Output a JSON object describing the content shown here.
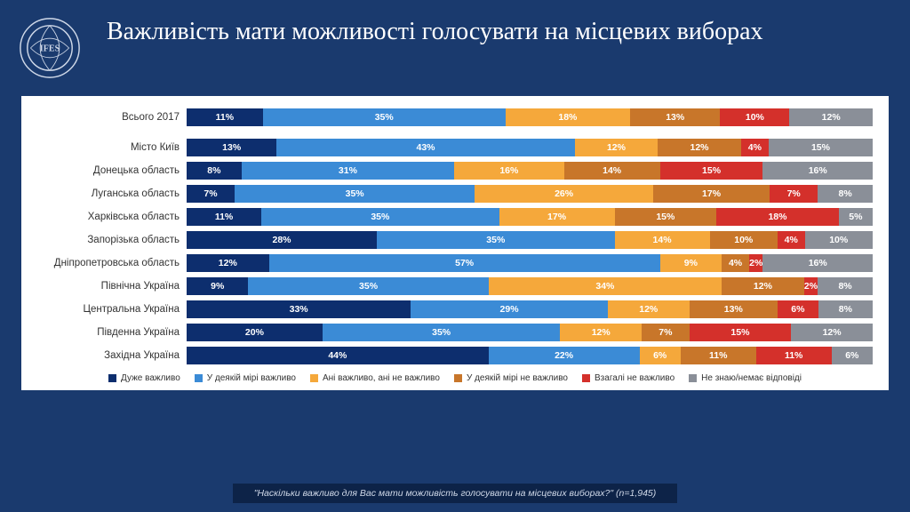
{
  "title": "Важливість мати можливості голосувати на місцевих виборах",
  "footer": "\"Наскільки важливо для Вас мати можливість голосувати на місцевих виборах?\" (n=1,945)",
  "colors": {
    "c1": "#0d2e6e",
    "c2": "#3b8bd6",
    "c3": "#f5a83b",
    "c4": "#c8762a",
    "c5": "#d4302b",
    "c6": "#8a8f98",
    "bg": "#1a3a6e",
    "panel": "#ffffff"
  },
  "legend": [
    {
      "label": "Дуже важливо",
      "color": "#0d2e6e"
    },
    {
      "label": "У деякій мірі важливо",
      "color": "#3b8bd6"
    },
    {
      "label": "Ані важливо, ані не важливо",
      "color": "#f5a83b"
    },
    {
      "label": "У деякій мірі не важливо",
      "color": "#c8762a"
    },
    {
      "label": "Взагалі не важливо",
      "color": "#d4302b"
    },
    {
      "label": "Не знаю/немає відповіді",
      "color": "#8a8f98"
    }
  ],
  "rows": [
    {
      "label": "Всього 2017",
      "v": [
        11,
        35,
        18,
        13,
        10,
        12
      ],
      "gap": true
    },
    {
      "label": "Місто Київ",
      "v": [
        13,
        43,
        12,
        12,
        4,
        15
      ]
    },
    {
      "label": "Донецька область",
      "v": [
        8,
        31,
        16,
        14,
        15,
        16
      ]
    },
    {
      "label": "Луганська область",
      "v": [
        7,
        35,
        26,
        17,
        7,
        8
      ]
    },
    {
      "label": "Харківська область",
      "v": [
        11,
        35,
        17,
        15,
        18,
        5
      ]
    },
    {
      "label": "Запорізька область",
      "v": [
        28,
        35,
        14,
        10,
        4,
        10
      ]
    },
    {
      "label": "Дніпропетровська область",
      "v": [
        12,
        57,
        9,
        4,
        2,
        16
      ]
    },
    {
      "label": "Північна Україна",
      "v": [
        9,
        35,
        34,
        12,
        2,
        8
      ]
    },
    {
      "label": "Центральна Україна",
      "v": [
        33,
        29,
        12,
        13,
        6,
        8
      ]
    },
    {
      "label": "Південна Україна",
      "v": [
        20,
        35,
        12,
        7,
        15,
        12
      ]
    },
    {
      "label": "Західна Україна",
      "v": [
        44,
        22,
        6,
        11,
        11,
        6
      ]
    }
  ]
}
